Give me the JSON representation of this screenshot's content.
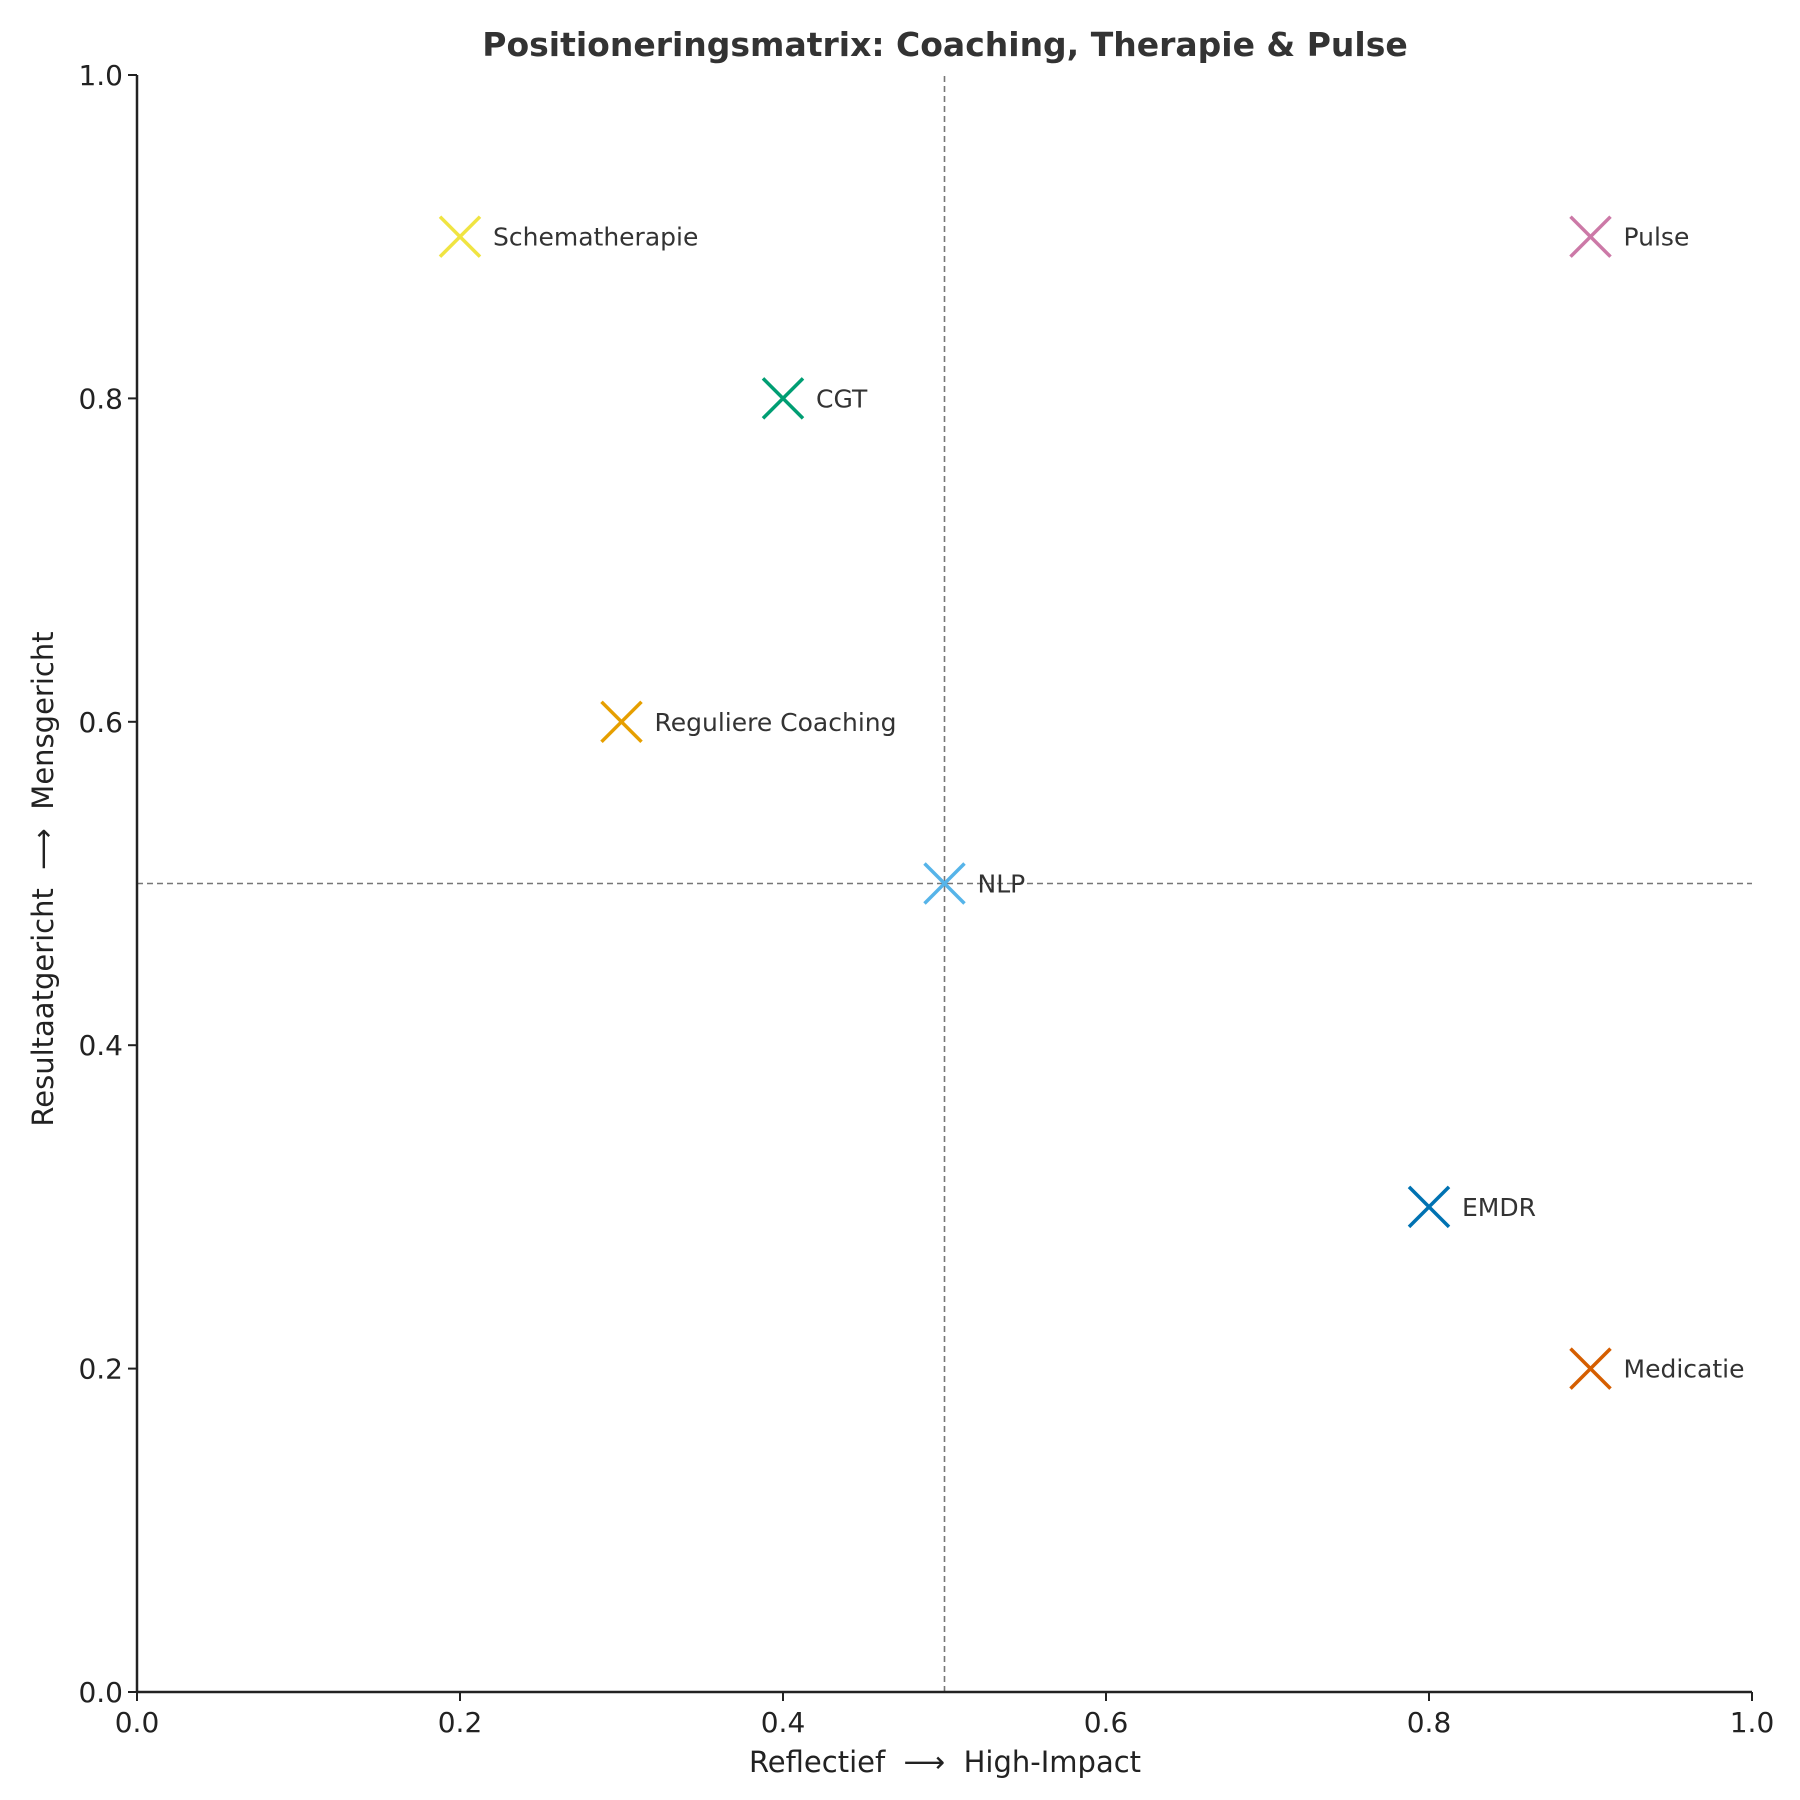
{
  "chart_data": {
    "type": "scatter",
    "title": "Positioneringsmatrix: Coaching, Therapie & Pulse",
    "xlabel": "Reflectief  ⟶  High-Impact",
    "ylabel": "Resultaatgericht  ⟶  Mensgericht",
    "xlim": [
      0,
      1
    ],
    "ylim": [
      0,
      1
    ],
    "xticks": [
      "0.0",
      "0.2",
      "0.4",
      "0.6",
      "0.8",
      "1.0"
    ],
    "yticks": [
      "0.0",
      "0.2",
      "0.4",
      "0.6",
      "0.8",
      "1.0"
    ],
    "grid": false,
    "reference_lines": {
      "x": 0.5,
      "y": 0.5
    },
    "marker": "x",
    "points": [
      {
        "label": "Pulse",
        "x": 0.9,
        "y": 0.9,
        "color": "#cc79a7"
      },
      {
        "label": "Schematherapie",
        "x": 0.2,
        "y": 0.9,
        "color": "#f0e442"
      },
      {
        "label": "CGT",
        "x": 0.4,
        "y": 0.8,
        "color": "#009e73"
      },
      {
        "label": "Reguliere Coaching",
        "x": 0.3,
        "y": 0.6,
        "color": "#e69f00"
      },
      {
        "label": "NLP",
        "x": 0.5,
        "y": 0.5,
        "color": "#56b4e9"
      },
      {
        "label": "EMDR",
        "x": 0.8,
        "y": 0.3,
        "color": "#0072b2"
      },
      {
        "label": "Medicatie",
        "x": 0.9,
        "y": 0.2,
        "color": "#d55e00"
      }
    ]
  }
}
